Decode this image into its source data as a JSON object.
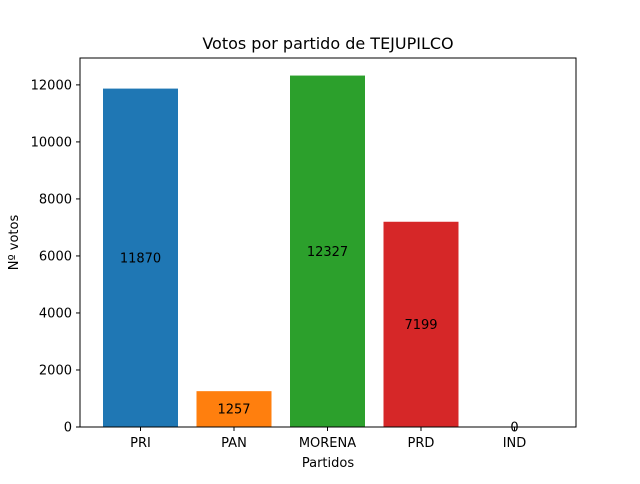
{
  "chart_data": {
    "type": "bar",
    "title": "Votos por partido de TEJUPILCO",
    "xlabel": "Partidos",
    "ylabel": "Nº votos",
    "categories": [
      "PRI",
      "PAN",
      "MORENA",
      "PRD",
      "IND"
    ],
    "values": [
      11870,
      1257,
      12327,
      7199,
      0
    ],
    "value_labels": [
      "11870",
      "1257",
      "12327",
      "7199",
      "0"
    ],
    "colors": [
      "#1f77b4",
      "#ff7f0e",
      "#2ca02c",
      "#d62728",
      "#9467bd"
    ],
    "ylim": [
      0,
      12943
    ],
    "yticks": [
      0,
      2000,
      4000,
      6000,
      8000,
      10000,
      12000
    ],
    "ytick_labels": [
      "0",
      "2000",
      "4000",
      "6000",
      "8000",
      "10000",
      "12000"
    ],
    "grid": false,
    "legend": "none"
  }
}
